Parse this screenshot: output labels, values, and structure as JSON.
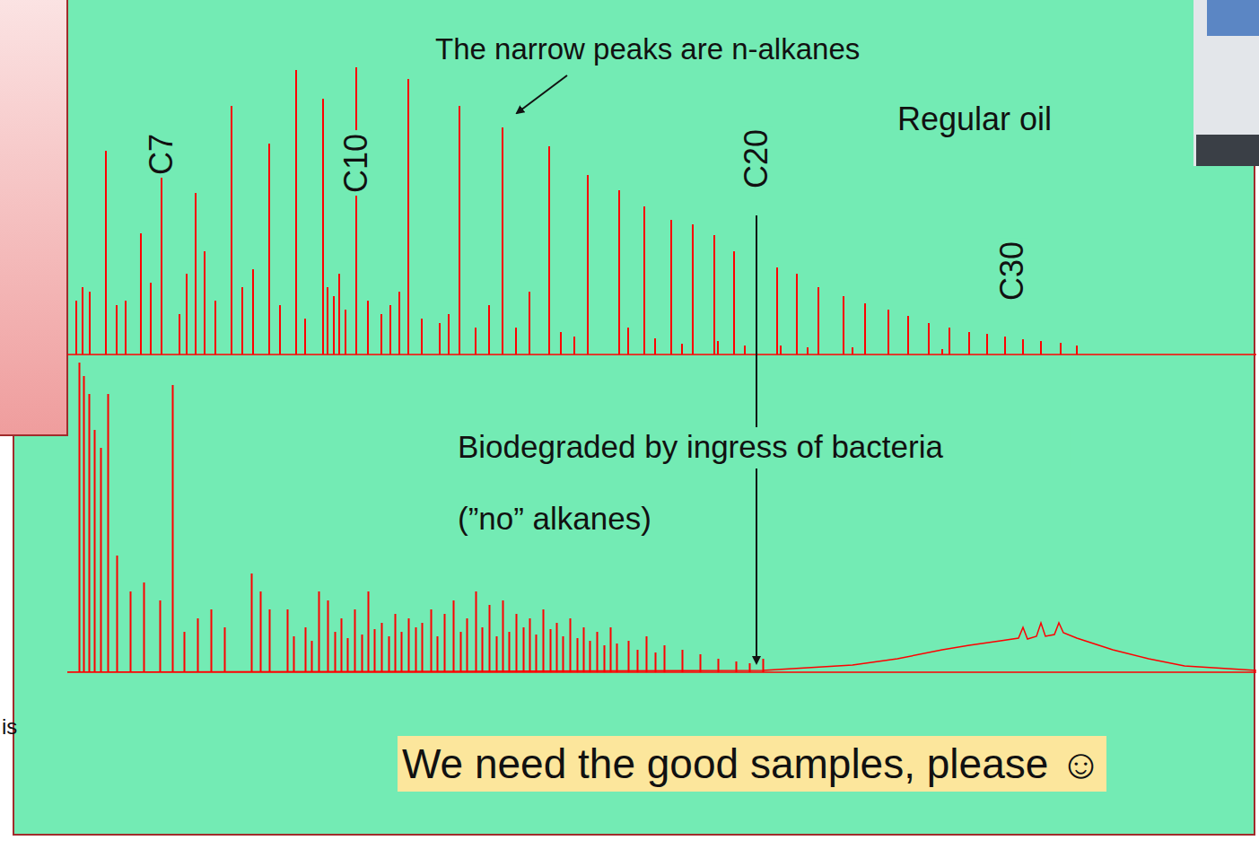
{
  "slide": {
    "callout": "We need the good samples, please ☺",
    "fragment": "is"
  },
  "chart_data": [
    {
      "type": "bar",
      "title": "Regular oil",
      "annotations": [
        {
          "text": "The narrow peaks are n-alkanes"
        },
        {
          "x": 105,
          "text": "C7"
        },
        {
          "x": 322,
          "text": "C10"
        },
        {
          "x": 768,
          "text": "C20"
        },
        {
          "x": 1053,
          "text": "C30"
        }
      ],
      "xlim": [
        0,
        1325
      ],
      "ylim": [
        0,
        330
      ],
      "tick_labels": false,
      "series": [
        {
          "type": "bar",
          "color": "#ff0000",
          "x": [
            10,
            17,
            25,
            43,
            55,
            65,
            82,
            93,
            105,
            125,
            133,
            143,
            153,
            165,
            183,
            195,
            207,
            225,
            237,
            255,
            265,
            285,
            290,
            297,
            303,
            310,
            322,
            335,
            350,
            360,
            370,
            380,
            395,
            415,
            425,
            437,
            455,
            470,
            485,
            500,
            515,
            537,
            550,
            565,
            580,
            615,
            625,
            643,
            655,
            673,
            685,
            697,
            721,
            725,
            743,
            755,
            768,
            791,
            795,
            813,
            825,
            837,
            865,
            875,
            889,
            915,
            937,
            960,
            975,
            983,
            1005,
            1025,
            1045,
            1065,
            1085,
            1107,
            1125
          ],
          "values": [
            60,
            75,
            70,
            227,
            55,
            60,
            135,
            80,
            247,
            45,
            90,
            180,
            115,
            60,
            277,
            75,
            95,
            235,
            55,
            317,
            40,
            285,
            75,
            65,
            90,
            50,
            320,
            60,
            45,
            55,
            70,
            307,
            40,
            35,
            45,
            277,
            30,
            55,
            253,
            30,
            70,
            232,
            25,
            20,
            200,
            183,
            30,
            165,
            18,
            150,
            12,
            145,
            133,
            15,
            115,
            10,
            105,
            97,
            10,
            90,
            8,
            75,
            65,
            8,
            57,
            50,
            43,
            35,
            6,
            30,
            25,
            23,
            20,
            17,
            15,
            13,
            10
          ]
        }
      ]
    },
    {
      "type": "bar",
      "title": "Biodegraded by ingress of bacteria",
      "subtitle": "(”no” alkanes)",
      "xlim": [
        0,
        1325
      ],
      "ylim": [
        0,
        350
      ],
      "tick_labels": false,
      "series": [
        {
          "type": "bar",
          "color": "#ff0000",
          "x": [
            13,
            18,
            24,
            30,
            37,
            45,
            55,
            70,
            85,
            103,
            117,
            130,
            145,
            160,
            175,
            205,
            215,
            225,
            245,
            252,
            265,
            272,
            280,
            290,
            298,
            305,
            312,
            320,
            328,
            335,
            342,
            350,
            358,
            365,
            372,
            380,
            388,
            395,
            405,
            412,
            420,
            430,
            438,
            445,
            455,
            462,
            470,
            478,
            485,
            492,
            500,
            508,
            515,
            522,
            530,
            538,
            545,
            552,
            560,
            568,
            575,
            582,
            590,
            598,
            605,
            612,
            625,
            635,
            645,
            655,
            665,
            685,
            705,
            725,
            745,
            760,
            775
          ],
          "values": [
            345,
            330,
            310,
            270,
            250,
            310,
            130,
            90,
            100,
            80,
            320,
            45,
            60,
            70,
            50,
            110,
            90,
            70,
            70,
            40,
            50,
            35,
            90,
            80,
            45,
            60,
            38,
            70,
            42,
            90,
            48,
            55,
            40,
            65,
            45,
            60,
            50,
            55,
            70,
            40,
            65,
            80,
            45,
            60,
            90,
            50,
            75,
            40,
            80,
            45,
            65,
            50,
            60,
            42,
            70,
            48,
            55,
            40,
            60,
            38,
            50,
            35,
            45,
            30,
            50,
            32,
            35,
            25,
            40,
            22,
            30,
            25,
            20,
            15,
            12,
            10,
            15
          ]
        },
        {
          "type": "line",
          "color": "#ff0000",
          "x": [
            0,
            775,
            825,
            875,
            925,
            975,
            1005,
            1040,
            1060,
            1065,
            1070,
            1080,
            1085,
            1090,
            1100,
            1105,
            1110,
            1125,
            1165,
            1205,
            1245,
            1325
          ],
          "values": [
            0,
            2,
            5,
            8,
            15,
            25,
            30,
            35,
            38,
            50,
            37,
            40,
            55,
            40,
            42,
            55,
            44,
            38,
            25,
            15,
            7,
            2
          ]
        }
      ]
    }
  ]
}
